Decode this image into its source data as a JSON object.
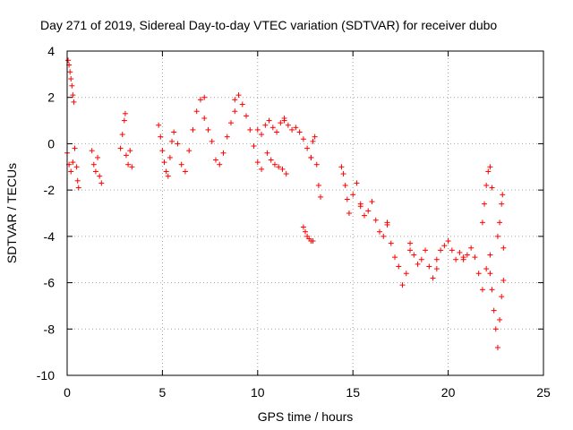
{
  "chart_data": {
    "type": "scatter",
    "title": "Day 271 of 2019, Sidereal Day-to-day VTEC variation (SDTVAR) for receiver dubo",
    "xlabel": "GPS time / hours",
    "ylabel": "SDTVAR / TECUs",
    "xlim": [
      0,
      25
    ],
    "ylim": [
      -10,
      4
    ],
    "xticks": [
      0,
      5,
      10,
      15,
      20,
      25
    ],
    "yticks": [
      -10,
      -8,
      -6,
      -4,
      -2,
      0,
      2,
      4
    ],
    "grid": true,
    "marker": "+",
    "color": "#ff0000",
    "series": [
      {
        "name": "SDTVAR",
        "segments": [
          {
            "x": [
              0.05,
              0.1,
              0.15,
              0.2,
              0.25,
              0.3,
              0.35
            ],
            "y": [
              3.6,
              3.4,
              3.1,
              2.8,
              2.5,
              2.1,
              1.8
            ]
          },
          {
            "x": [
              0.0,
              0.1,
              0.2,
              0.3,
              0.4,
              0.5,
              0.55,
              0.6
            ],
            "y": [
              -0.4,
              -0.9,
              -1.2,
              -0.8,
              -0.2,
              -1.0,
              -1.6,
              -1.9
            ]
          },
          {
            "x": [
              1.3,
              1.4,
              1.5,
              1.6,
              1.7,
              1.8
            ],
            "y": [
              -0.3,
              -0.9,
              -1.2,
              -0.6,
              -1.4,
              -1.7
            ]
          },
          {
            "x": [
              2.8,
              2.9,
              3.0,
              3.05,
              3.1,
              3.2,
              3.3,
              3.4
            ],
            "y": [
              -0.2,
              0.4,
              1.0,
              1.3,
              -0.5,
              -0.9,
              -0.3,
              -1.0
            ]
          },
          {
            "x": [
              4.8,
              4.9,
              5.0,
              5.1,
              5.2,
              5.3,
              5.4,
              5.5
            ],
            "y": [
              0.8,
              0.3,
              -0.3,
              -0.8,
              -1.2,
              -1.4,
              -0.6,
              0.1
            ]
          },
          {
            "x": [
              5.6,
              5.8,
              6.0,
              6.2,
              6.4,
              6.6,
              6.8,
              7.0,
              7.2
            ],
            "y": [
              0.5,
              0.0,
              -0.9,
              -1.2,
              -0.3,
              0.6,
              1.4,
              1.9,
              2.0
            ]
          },
          {
            "x": [
              7.2,
              7.4,
              7.6,
              7.8,
              8.0,
              8.2,
              8.4,
              8.6,
              8.8
            ],
            "y": [
              1.1,
              0.6,
              0.1,
              -0.7,
              -0.9,
              -0.4,
              0.3,
              0.9,
              1.4
            ]
          },
          {
            "x": [
              8.8,
              9.0,
              9.2,
              9.4,
              9.6,
              9.8,
              10.0,
              10.2
            ],
            "y": [
              1.9,
              2.1,
              1.7,
              1.2,
              0.6,
              -0.1,
              -0.8,
              -1.1
            ]
          },
          {
            "x": [
              10.0,
              10.2,
              10.4,
              10.6,
              10.8,
              11.0,
              11.2,
              11.4
            ],
            "y": [
              0.6,
              0.4,
              0.8,
              1.0,
              0.7,
              0.5,
              0.9,
              1.1
            ]
          },
          {
            "x": [
              11.4,
              11.6,
              11.8,
              12.0,
              12.2,
              12.4,
              12.6,
              12.8
            ],
            "y": [
              1.0,
              0.8,
              0.6,
              0.7,
              0.5,
              0.2,
              -0.2,
              -0.6
            ]
          },
          {
            "x": [
              12.8,
              12.9,
              13.0,
              13.1,
              13.2,
              13.3
            ],
            "y": [
              -0.6,
              0.1,
              0.3,
              -0.9,
              -1.8,
              -2.3
            ]
          },
          {
            "x": [
              10.5,
              10.7,
              10.9,
              11.1,
              11.3,
              11.5
            ],
            "y": [
              -0.4,
              -0.7,
              -0.9,
              -1.0,
              -1.1,
              -1.3
            ]
          },
          {
            "x": [
              12.4,
              12.5,
              12.6,
              12.7,
              12.8,
              12.9
            ],
            "y": [
              -3.6,
              -3.8,
              -4.0,
              -4.1,
              -4.2,
              -4.2
            ]
          },
          {
            "x": [
              14.4,
              14.5,
              14.6,
              14.7,
              14.8,
              15.0,
              15.2,
              15.4
            ],
            "y": [
              -1.0,
              -1.3,
              -1.8,
              -2.4,
              -3.0,
              -2.2,
              -1.7,
              -2.6
            ]
          },
          {
            "x": [
              15.4,
              15.6,
              15.8,
              16.0,
              16.2,
              16.4,
              16.6,
              16.8
            ],
            "y": [
              -2.7,
              -3.1,
              -2.9,
              -2.5,
              -3.3,
              -3.8,
              -4.0,
              -3.4
            ]
          },
          {
            "x": [
              16.8,
              17.0,
              17.2,
              17.4,
              17.6,
              17.8,
              18.0
            ],
            "y": [
              -3.5,
              -4.3,
              -4.9,
              -5.3,
              -6.1,
              -5.6,
              -4.6
            ]
          },
          {
            "x": [
              18.0,
              18.2,
              18.4,
              18.6,
              18.8,
              19.0,
              19.2,
              19.4
            ],
            "y": [
              -4.3,
              -4.8,
              -5.2,
              -5.0,
              -4.6,
              -5.3,
              -5.8,
              -5.4
            ]
          },
          {
            "x": [
              19.4,
              19.6,
              19.8,
              20.0,
              20.2,
              20.4,
              20.6,
              20.8
            ],
            "y": [
              -5.0,
              -4.6,
              -4.4,
              -4.2,
              -4.6,
              -5.0,
              -4.7,
              -4.9
            ]
          },
          {
            "x": [
              20.8,
              21.0,
              21.2,
              21.4,
              21.6,
              21.8,
              22.0,
              22.2
            ],
            "y": [
              -5.0,
              -4.8,
              -4.5,
              -4.9,
              -5.6,
              -6.3,
              -5.4,
              -4.8
            ]
          },
          {
            "x": [
              21.8,
              21.9,
              22.0,
              22.1,
              22.2,
              22.3
            ],
            "y": [
              -3.4,
              -2.6,
              -1.8,
              -1.2,
              -1.0,
              -1.9
            ]
          },
          {
            "x": [
              22.2,
              22.3,
              22.4,
              22.5,
              22.6,
              22.7,
              22.8,
              22.9
            ],
            "y": [
              -5.6,
              -6.3,
              -7.2,
              -8.0,
              -8.8,
              -7.6,
              -6.6,
              -5.9
            ]
          },
          {
            "x": [
              22.6,
              22.7,
              22.8,
              22.85,
              22.9
            ],
            "y": [
              -4.0,
              -3.4,
              -2.6,
              -2.2,
              -4.5
            ]
          }
        ]
      }
    ]
  }
}
